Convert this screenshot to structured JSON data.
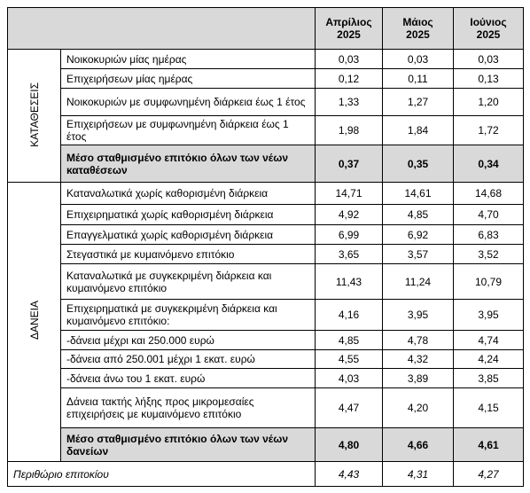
{
  "header": {
    "columns": [
      "Απρίλιος\n2025",
      "Μάιος\n2025",
      "Ιούνιος\n2025"
    ]
  },
  "groups": [
    {
      "label": "ΚΑΤΑΘΕΣΕΙΣ",
      "rows": [
        {
          "label": "Νοικοκυριών μίας ημέρας",
          "values": [
            "0,03",
            "0,03",
            "0,03"
          ]
        },
        {
          "label": "Επιχειρήσεων μίας ημέρας",
          "values": [
            "0,12",
            "0,11",
            "0,13"
          ]
        },
        {
          "label": "Νοικοκυριών με συμφωνημένη διάρκεια έως 1 έτος",
          "values": [
            "1,33",
            "1,27",
            "1,20"
          ]
        },
        {
          "label": "Επιχειρήσεων με συμφωνημένη διάρκεια έως 1 έτος",
          "values": [
            "1,98",
            "1,84",
            "1,72"
          ]
        },
        {
          "label": "Μέσο σταθμισμένο επιτόκιο όλων των νέων καταθέσεων",
          "values": [
            "0,37",
            "0,35",
            "0,34"
          ]
        }
      ]
    },
    {
      "label": "ΔΑΝΕΙΑ",
      "rows": [
        {
          "label": "Καταναλωτικά χωρίς καθορισμένη διάρκεια",
          "values": [
            "14,71",
            "14,61",
            "14,68"
          ]
        },
        {
          "label": "Επιχειρηματικά χωρίς καθορισμένη διάρκεια",
          "values": [
            "4,92",
            "4,85",
            "4,70"
          ]
        },
        {
          "label": "Επαγγελματικά χωρίς καθορισμένη διάρκεια",
          "values": [
            "6,99",
            "6,92",
            "6,83"
          ]
        },
        {
          "label": "Στεγαστικά με κυμαινόμενο επιτόκιο",
          "values": [
            "3,65",
            "3,57",
            "3,52"
          ]
        },
        {
          "label": "Καταναλωτικά με συγκεκριμένη διάρκεια και κυμαινόμενο επιτόκιο",
          "values": [
            "11,43",
            "11,24",
            "10,79"
          ]
        },
        {
          "label": "Επιχειρηματικά με συγκεκριμένη διάρκεια και κυμαινόμενο επιτόκιο:",
          "values": [
            "4,16",
            "3,95",
            "3,95"
          ]
        },
        {
          "label": "-δάνεια μέχρι και 250.000 ευρώ",
          "values": [
            "4,85",
            "4,78",
            "4,74"
          ]
        },
        {
          "label": "-δάνεια από 250.001 μέχρι 1 εκατ. ευρώ",
          "values": [
            "4,55",
            "4,32",
            "4,24"
          ]
        },
        {
          "label": "-δάνεια άνω του 1 εκατ. ευρώ",
          "values": [
            "4,03",
            "3,89",
            "3,85"
          ]
        },
        {
          "label": "Δάνεια τακτής λήξης προς μικρομεσαίες επιχειρήσεις με κυμαινόμενο επιτόκιο",
          "values": [
            "4,47",
            "4,20",
            "4,15"
          ]
        },
        {
          "label": "Μέσο σταθμισμένο επιτόκιο όλων των νέων δανείων",
          "values": [
            "4,80",
            "4,66",
            "4,61"
          ]
        }
      ]
    }
  ],
  "footer": {
    "label": "Περιθώριο επιτοκίου",
    "values": [
      "4,43",
      "4,31",
      "4,27"
    ]
  }
}
